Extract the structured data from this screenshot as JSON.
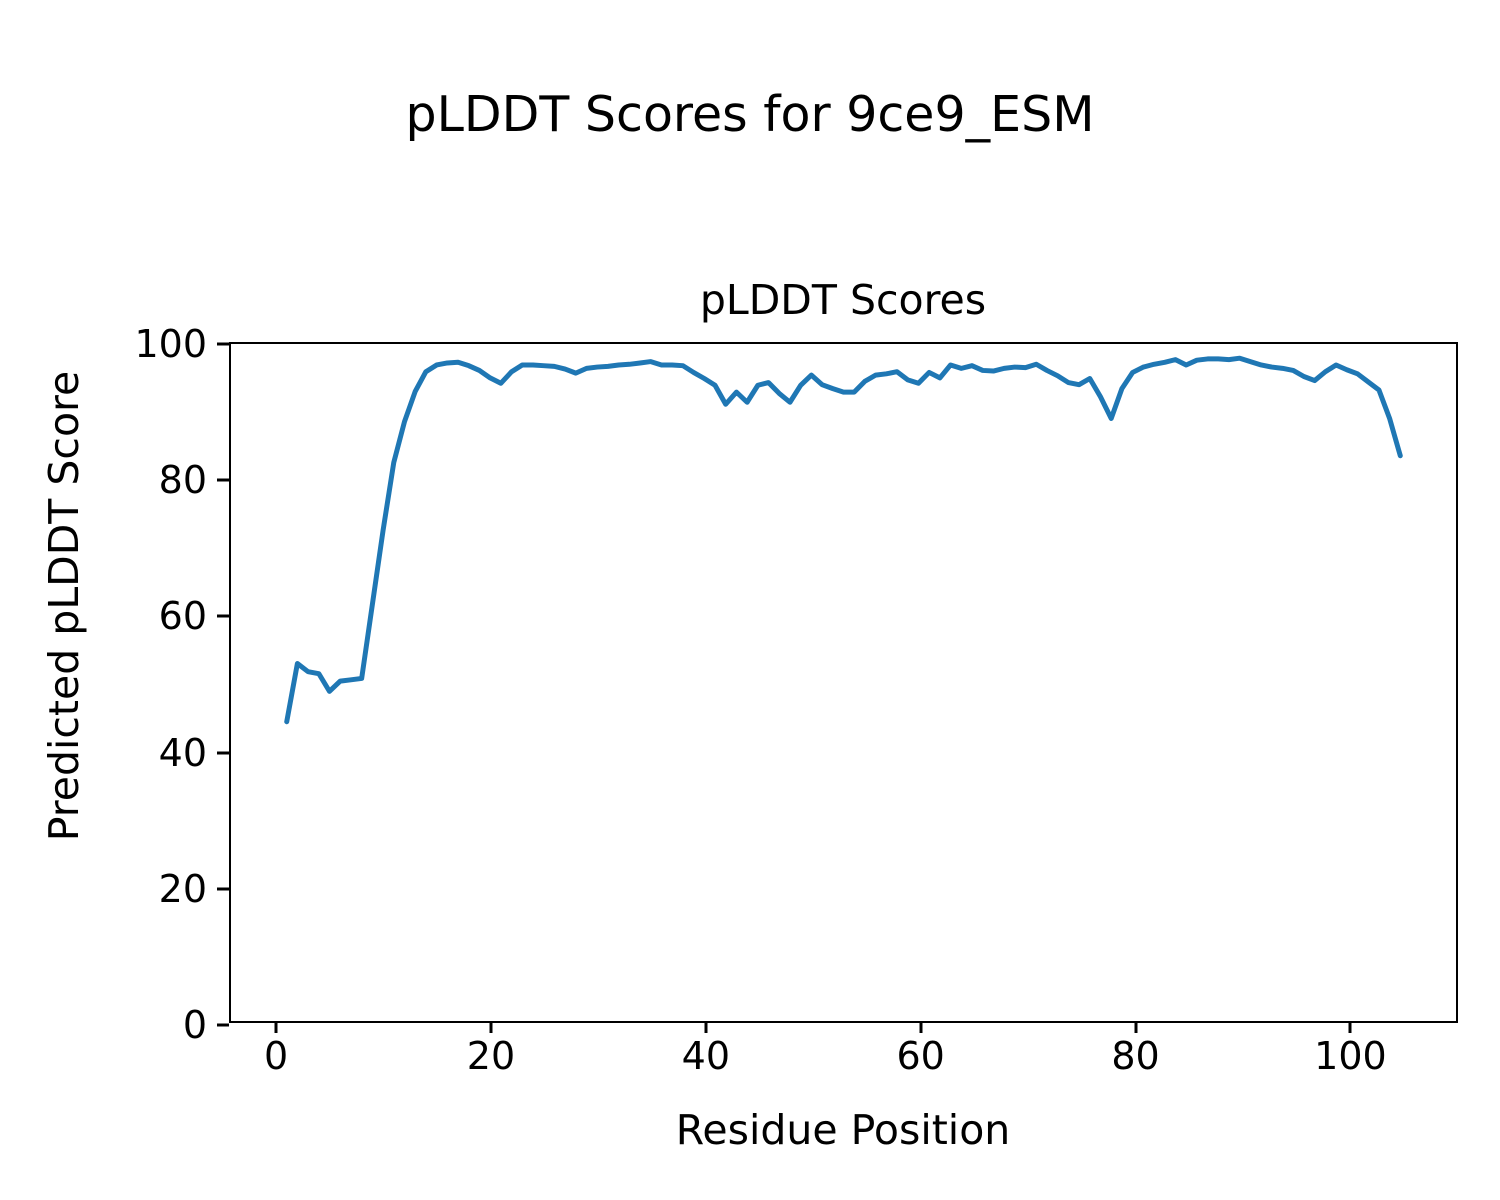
{
  "figure": {
    "background_color": "#ffffff",
    "text_color": "#000000"
  },
  "chart_data": {
    "type": "line",
    "suptitle": "pLDDT Scores for 9ce9_ESM",
    "title": "pLDDT Scores",
    "xlabel": "Residue Position",
    "ylabel": "Predicted pLDDT Score",
    "xlim": [
      -4.2,
      110.2
    ],
    "ylim": [
      0,
      100
    ],
    "x_ticks": [
      0,
      20,
      40,
      60,
      80,
      100
    ],
    "y_ticks": [
      0,
      20,
      40,
      60,
      80,
      100
    ],
    "grid": false,
    "legend": "none",
    "line_color": "#1f77b4",
    "line_width": 5,
    "axis_color": "#000000",
    "series": [
      {
        "name": "pLDDT",
        "x_start": 1,
        "x_step": 1,
        "values": [
          44.2,
          52.8,
          51.6,
          51.3,
          48.7,
          50.2,
          50.4,
          50.6,
          61.5,
          72.5,
          82.5,
          88.5,
          93.0,
          95.9,
          96.9,
          97.2,
          97.3,
          96.8,
          96.1,
          95.0,
          94.2,
          95.9,
          96.9,
          96.9,
          96.8,
          96.7,
          96.3,
          95.7,
          96.4,
          96.6,
          96.7,
          96.9,
          97.0,
          97.2,
          97.4,
          96.9,
          96.9,
          96.8,
          95.8,
          94.9,
          93.9,
          91.1,
          92.9,
          91.4,
          93.9,
          94.3,
          92.7,
          91.4,
          93.9,
          95.4,
          94.0,
          93.4,
          92.9,
          92.9,
          94.5,
          95.4,
          95.6,
          95.9,
          94.7,
          94.2,
          95.8,
          95.0,
          96.9,
          96.4,
          96.8,
          96.1,
          96.0,
          96.4,
          96.6,
          96.5,
          97.0,
          96.1,
          95.3,
          94.3,
          94.0,
          94.9,
          92.2,
          89.0,
          93.4,
          95.8,
          96.6,
          97.0,
          97.3,
          97.7,
          96.9,
          97.6,
          97.8,
          97.8,
          97.7,
          97.9,
          97.4,
          96.9,
          96.6,
          96.4,
          96.1,
          95.2,
          94.6,
          95.9,
          96.9,
          96.2,
          95.6,
          94.4,
          93.2,
          89.0,
          83.5
        ]
      }
    ]
  }
}
